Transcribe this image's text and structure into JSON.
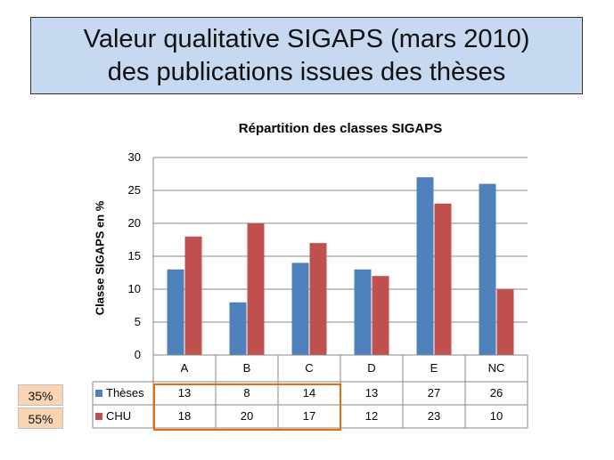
{
  "header": {
    "title_line1": "Valeur qualitative SIGAPS (mars 2010)",
    "title_line2": "des publications issues des thèses"
  },
  "annotations": {
    "pct_theses": "35%",
    "pct_chu": "55%",
    "highlight_color": "#e46c0a",
    "pct_box_color": "#fbd4b4"
  },
  "chart_data": {
    "type": "bar",
    "title": "Répartition des classes SIGAPS",
    "xlabel": "",
    "ylabel": "Classe SIGAPS en %",
    "ylim": [
      0,
      30
    ],
    "yticks": [
      "0",
      "5",
      "10",
      "15",
      "20",
      "25",
      "30"
    ],
    "grid": true,
    "legend": "data-table",
    "categories": [
      "A",
      "B",
      "C",
      "D",
      "E",
      "NC"
    ],
    "series": [
      {
        "name": "Thèses",
        "color": "#4f81bd",
        "values": [
          13,
          8,
          14,
          13,
          27,
          26
        ]
      },
      {
        "name": "CHU",
        "color": "#c0504d",
        "values": [
          18,
          20,
          17,
          12,
          23,
          10
        ]
      }
    ]
  }
}
